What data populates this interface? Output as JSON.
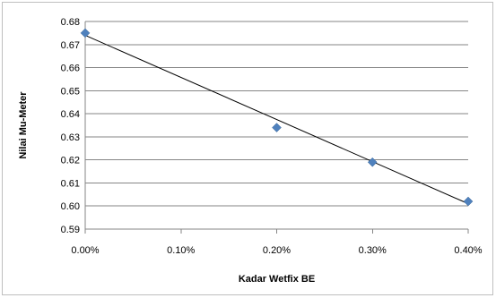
{
  "chart_data": {
    "type": "scatter",
    "title": "",
    "xlabel": "Kadar Wetfix BE",
    "ylabel": "Nilai Mu-Meter",
    "xlim": [
      0,
      0.4
    ],
    "ylim": [
      0.59,
      0.68
    ],
    "x_ticks": [
      "0.00%",
      "0.10%",
      "0.20%",
      "0.30%",
      "0.40%"
    ],
    "x_tick_values": [
      0,
      0.1,
      0.2,
      0.3,
      0.4
    ],
    "y_ticks": [
      "0.59",
      "0.60",
      "0.61",
      "0.62",
      "0.63",
      "0.64",
      "0.65",
      "0.66",
      "0.67",
      "0.68"
    ],
    "y_tick_values": [
      0.59,
      0.6,
      0.61,
      0.62,
      0.63,
      0.64,
      0.65,
      0.66,
      0.67,
      0.68
    ],
    "grid": true,
    "legend": "none",
    "series": [
      {
        "x": [
          0.0,
          0.2,
          0.3,
          0.4
        ],
        "y": [
          0.675,
          0.634,
          0.619,
          0.602
        ],
        "marker": "diamond",
        "color": "#4f81bd"
      }
    ],
    "trendline": {
      "type": "linear",
      "color": "#000000",
      "x": [
        0.0,
        0.4
      ],
      "y": [
        0.674,
        0.601
      ]
    }
  }
}
